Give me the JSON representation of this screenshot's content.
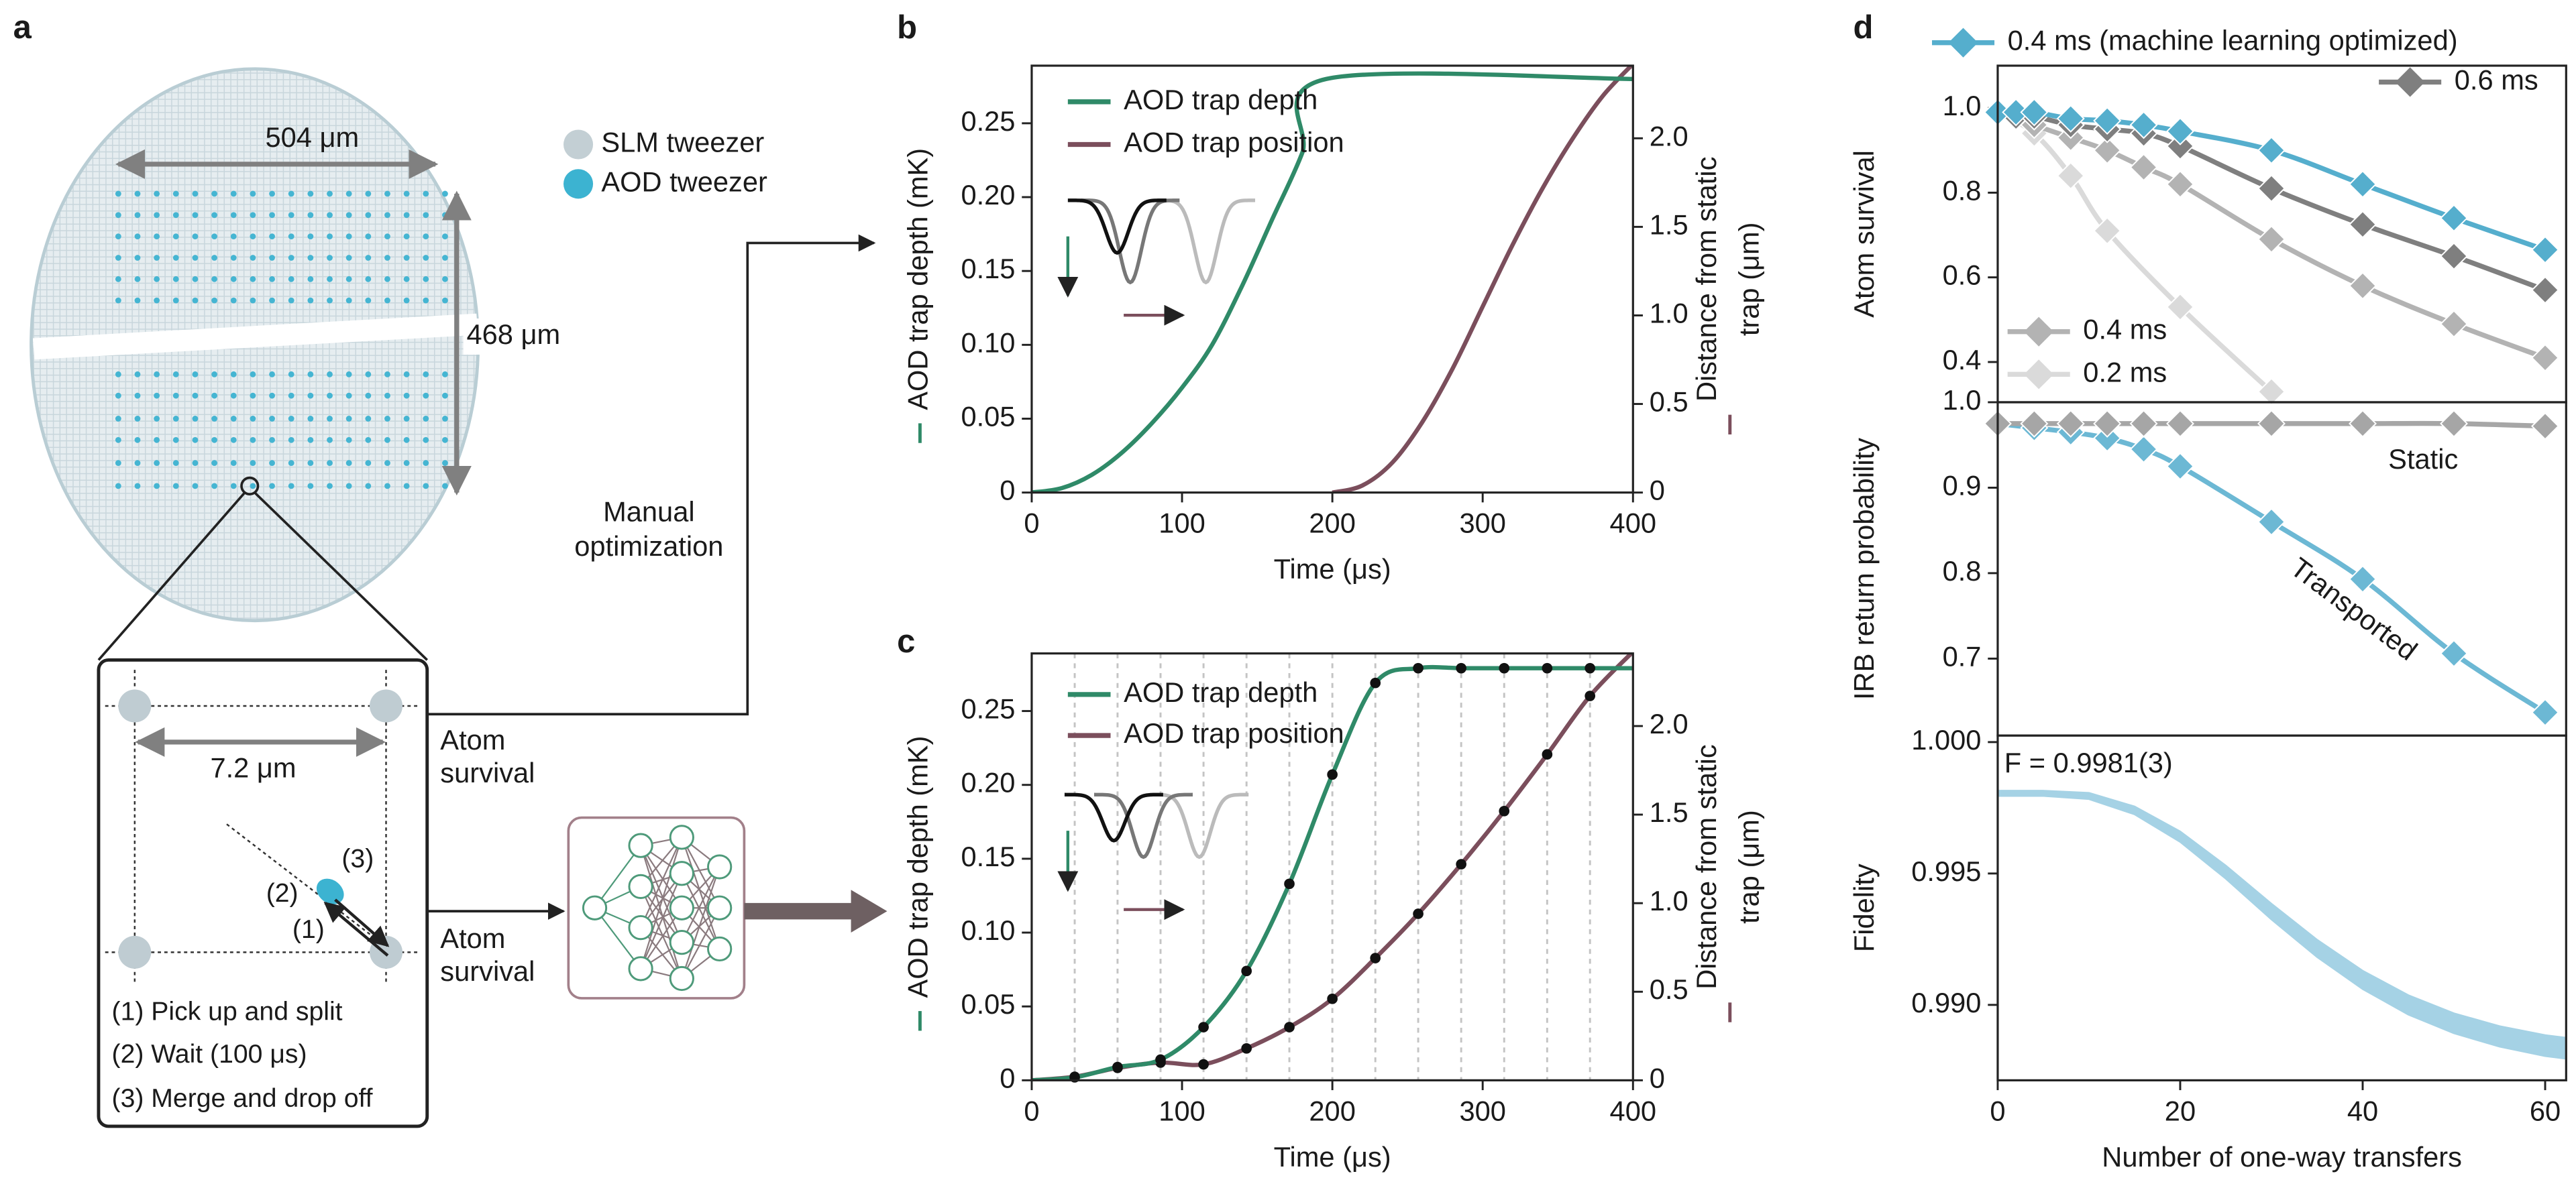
{
  "panel_labels": [
    "a",
    "b",
    "c",
    "d"
  ],
  "diagram": {
    "array_width": "504 μm",
    "array_height": "468 μm",
    "legend": [
      "SLM tweezer",
      "AOD tweezer"
    ],
    "spacing": "7.2 μm",
    "move_markers": [
      "(1)",
      "(2)",
      "(3)"
    ],
    "steps": [
      "(1) Pick up and split",
      "(2) Wait (100 μs)",
      "(3) Merge and drop off"
    ],
    "feedback_top": [
      "Atom",
      "survival"
    ],
    "feedback_bottom": [
      "Atom",
      "survival"
    ],
    "manual": [
      "Manual",
      "optimization"
    ]
  },
  "chart_data": [
    {
      "type": "line",
      "xlabel": "Time (μs)",
      "ylabel": "AOD trap depth (mK)",
      "y2label": [
        "Distance from static",
        "trap (μm)"
      ],
      "xlim": [
        0,
        400
      ],
      "xticks": [
        0,
        100,
        200,
        300,
        400
      ],
      "ylim": [
        0,
        0.289
      ],
      "yticks": [
        0,
        0.05,
        {
          "value": 0.1,
          "label": "0.10"
        },
        0.15,
        {
          "value": 0.2,
          "label": "0.20"
        },
        0.25
      ],
      "y2lim": [
        0,
        2.41
      ],
      "y2ticks": [
        0,
        0.5,
        {
          "value": 1,
          "label": "1.0"
        },
        1.5,
        {
          "value": 2,
          "label": "2.0"
        }
      ],
      "series": [
        {
          "name": "AOD trap depth",
          "color": "#2f8a68",
          "x": [
            0,
            20,
            40,
            60,
            80,
            100,
            120,
            140,
            160,
            180,
            196,
            400
          ],
          "values": [
            0,
            0.003,
            0.012,
            0.027,
            0.047,
            0.071,
            0.1,
            0.14,
            0.185,
            0.23,
            0.28,
            0.28
          ]
        },
        {
          "name": "AOD trap position",
          "color": "#7b4e5c",
          "axis": "y2",
          "x": [
            200,
            220,
            240,
            260,
            280,
            300,
            320,
            340,
            360,
            380,
            400
          ],
          "values": [
            0,
            0.04,
            0.17,
            0.4,
            0.7,
            1.05,
            1.4,
            1.72,
            2.0,
            2.24,
            2.42
          ]
        }
      ]
    },
    {
      "type": "line",
      "xlabel": "Time (μs)",
      "ylabel": "AOD trap depth (mK)",
      "y2label": [
        "Distance from static",
        "trap (μm)"
      ],
      "marker": "dot",
      "xlim": [
        0,
        400
      ],
      "xticks": [
        0,
        100,
        200,
        300,
        400
      ],
      "ylim": [
        0,
        0.289
      ],
      "yticks": [
        0,
        0.05,
        {
          "value": 0.1,
          "label": "0.10"
        },
        0.15,
        {
          "value": 0.2,
          "label": "0.20"
        },
        0.25
      ],
      "y2lim": [
        0,
        2.41
      ],
      "y2ticks": [
        0,
        0.5,
        {
          "value": 1,
          "label": "1.0"
        },
        1.5,
        {
          "value": 2,
          "label": "2.0"
        }
      ],
      "vlines": [
        28.6,
        57.1,
        85.7,
        114.3,
        142.9,
        171.4,
        200,
        228.6,
        257.1,
        285.7,
        314.3,
        342.9,
        371.4
      ],
      "x": [
        0,
        28.6,
        57.1,
        85.7,
        114.3,
        142.9,
        171.4,
        200,
        228.6,
        257.1,
        285.7,
        314.3,
        342.9,
        371.4,
        400
      ],
      "series": [
        {
          "name": "AOD trap depth",
          "color": "#2f8a68",
          "values": [
            0,
            0.002,
            0.009,
            0.014,
            0.036,
            0.074,
            0.133,
            0.207,
            0.269,
            0.279,
            0.279,
            0.279,
            0.279,
            0.279,
            0.279
          ]
        },
        {
          "name": "AOD trap position",
          "color": "#7b4e5c",
          "axis": "y2",
          "values": [
            0,
            0.02,
            0.07,
            0.1,
            0.09,
            0.18,
            0.3,
            0.46,
            0.69,
            0.94,
            1.22,
            1.52,
            1.84,
            2.17,
            2.42
          ]
        }
      ]
    },
    {
      "type": "line",
      "ylabel": "Atom survival",
      "marker": "diamond",
      "xlim": [
        0,
        62.3
      ],
      "ylim": [
        0.305,
        1.1
      ],
      "yticks": [
        0.4,
        0.6,
        0.8,
        {
          "value": 1,
          "label": "1.0"
        }
      ],
      "series": [
        {
          "name": "0.4 ms (machine learning optimized)",
          "color": "#55aecd",
          "x": [
            0,
            2,
            4,
            8,
            12,
            16,
            20,
            30,
            40,
            50,
            60
          ],
          "values": [
            0.99,
            0.99,
            0.99,
            0.975,
            0.97,
            0.96,
            0.945,
            0.9,
            0.82,
            0.74,
            0.665
          ]
        },
        {
          "name": "0.6 ms",
          "color": "#7f7f7f",
          "x": [
            0,
            2,
            4,
            8,
            12,
            16,
            20,
            30,
            40,
            50,
            60
          ],
          "values": [
            0.99,
            0.98,
            0.98,
            0.96,
            0.95,
            0.94,
            0.91,
            0.81,
            0.725,
            0.65,
            0.57
          ]
        },
        {
          "name": "0.4 ms",
          "color": "#b3b3b3",
          "x": [
            0,
            2,
            4,
            8,
            12,
            16,
            20,
            30,
            40,
            50,
            60
          ],
          "values": [
            0.99,
            0.98,
            0.96,
            0.93,
            0.9,
            0.86,
            0.82,
            0.69,
            0.58,
            0.49,
            0.41
          ]
        },
        {
          "name": "0.2 ms",
          "color": "#dadada",
          "x": [
            0,
            4,
            8,
            12,
            20,
            30
          ],
          "values": [
            0.99,
            0.94,
            0.84,
            0.71,
            0.53,
            0.33
          ]
        }
      ]
    },
    {
      "type": "line",
      "ylabel": "IRB return probability",
      "marker": "diamond",
      "xlim": [
        0,
        62.3
      ],
      "ylim": [
        0.61,
        1.0
      ],
      "yticks": [
        0.7,
        0.8,
        0.9,
        {
          "value": 1,
          "label": "1.0"
        }
      ],
      "series": [
        {
          "name": "Static",
          "color": "#a6a6a6",
          "x": [
            0,
            4,
            8,
            12,
            16,
            20,
            30,
            40,
            50,
            60
          ],
          "values": [
            0.975,
            0.975,
            0.975,
            0.975,
            0.975,
            0.975,
            0.975,
            0.975,
            0.975,
            0.972
          ]
        },
        {
          "name": "Transported",
          "color": "#6cb8d4",
          "x": [
            0,
            4,
            8,
            12,
            16,
            20,
            30,
            40,
            50,
            60
          ],
          "values": [
            0.975,
            0.97,
            0.965,
            0.958,
            0.945,
            0.925,
            0.86,
            0.793,
            0.706,
            0.637
          ]
        }
      ]
    },
    {
      "type": "area",
      "xlabel": "Number of one-way transfers",
      "ylabel": "Fidelity",
      "annotation": "F = 0.9981(3)",
      "xlim": [
        0,
        62.3
      ],
      "xticks": [
        0,
        20,
        40,
        60
      ],
      "ylim": [
        0.98713,
        1.00025
      ],
      "yticks": [
        {
          "value": 0.99,
          "label": "0.990"
        },
        {
          "value": 0.995,
          "label": "0.995"
        },
        {
          "value": 1,
          "label": "1.000"
        }
      ],
      "series": [
        {
          "color": "#a5d2e5",
          "x": [
            0,
            5,
            10,
            15,
            20,
            25,
            30,
            35,
            40,
            45,
            50,
            55,
            60,
            62.3
          ],
          "upper": [
            0.99815,
            0.99815,
            0.99807,
            0.99755,
            0.9966,
            0.9953,
            0.99385,
            0.99248,
            0.9913,
            0.99037,
            0.98968,
            0.98919,
            0.98885,
            0.98875
          ],
          "lower": [
            0.99795,
            0.99795,
            0.99783,
            0.99725,
            0.9962,
            0.9948,
            0.99325,
            0.99182,
            0.9906,
            0.98963,
            0.98892,
            0.98841,
            0.98805,
            0.98795
          ]
        }
      ]
    }
  ]
}
